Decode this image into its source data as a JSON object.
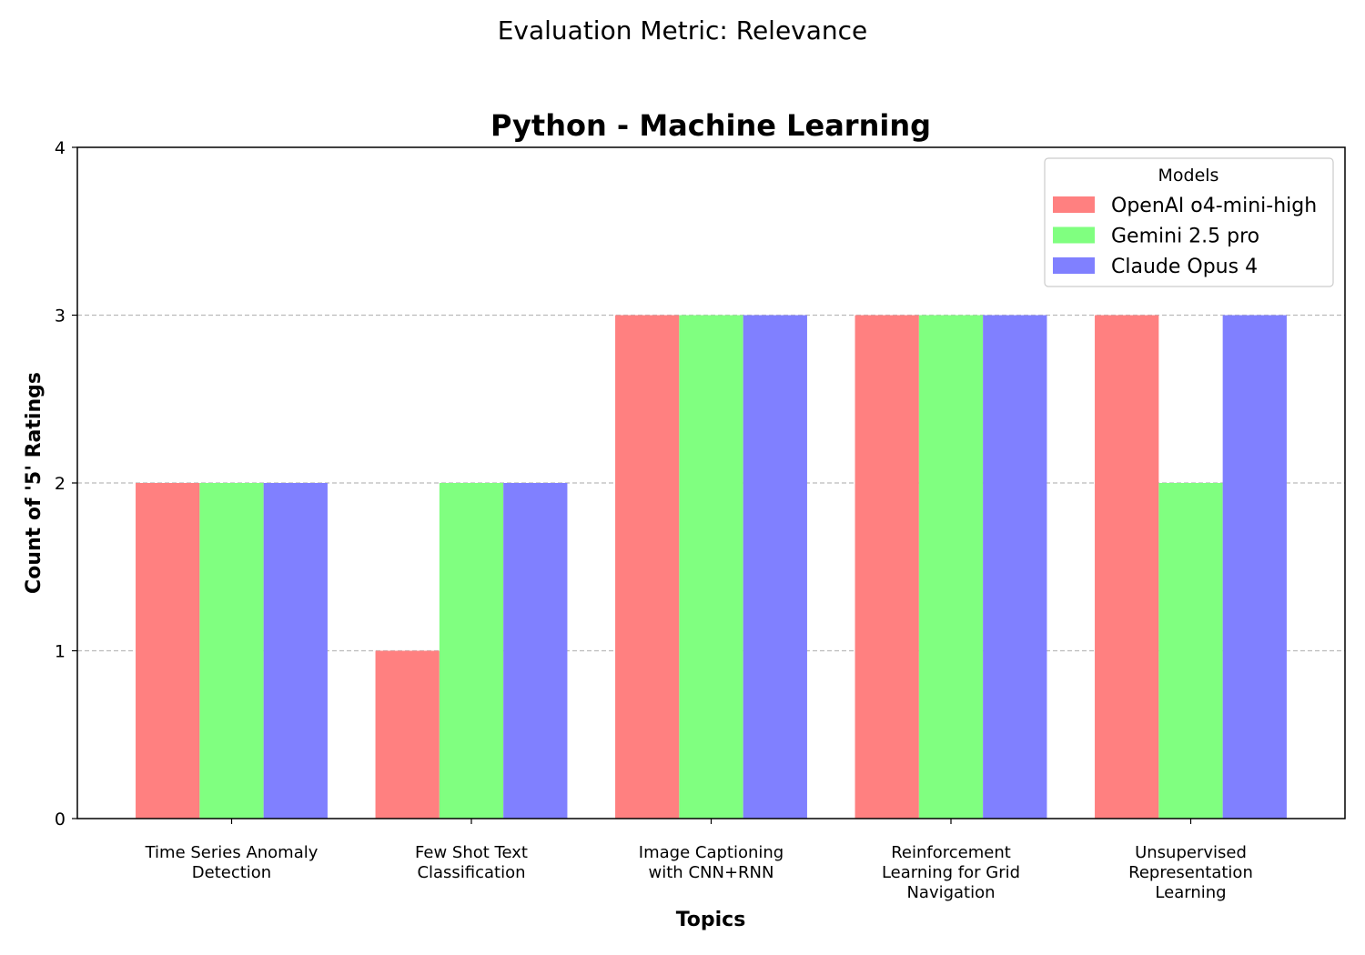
{
  "figure": {
    "suptitle": "Evaluation Metric: Relevance"
  },
  "chart_data": {
    "type": "bar",
    "title": "Python - Machine Learning",
    "xlabel": "Topics",
    "ylabel": "Count of '5' Ratings",
    "ylim": [
      0,
      4
    ],
    "yticks": [
      "0",
      "1",
      "2",
      "3",
      "4"
    ],
    "grid": "horizontal dashed",
    "categories": [
      [
        "Time Series Anomaly",
        "Detection"
      ],
      [
        "Few Shot Text",
        "Classification"
      ],
      [
        "Image Captioning",
        "with CNN+RNN"
      ],
      [
        "Reinforcement",
        "Learning for Grid",
        "Navigation"
      ],
      [
        "Unsupervised",
        "Representation",
        "Learning"
      ]
    ],
    "series": [
      {
        "name": "OpenAI o4-mini-high",
        "color": "#ff8080",
        "values": [
          2,
          1,
          3,
          3,
          3
        ]
      },
      {
        "name": "Gemini 2.5 pro",
        "color": "#80ff80",
        "values": [
          2,
          2,
          3,
          3,
          2
        ]
      },
      {
        "name": "Claude Opus 4",
        "color": "#8080ff",
        "values": [
          2,
          2,
          3,
          3,
          3
        ]
      }
    ],
    "legend": {
      "title": "Models",
      "position": "top-right"
    }
  }
}
